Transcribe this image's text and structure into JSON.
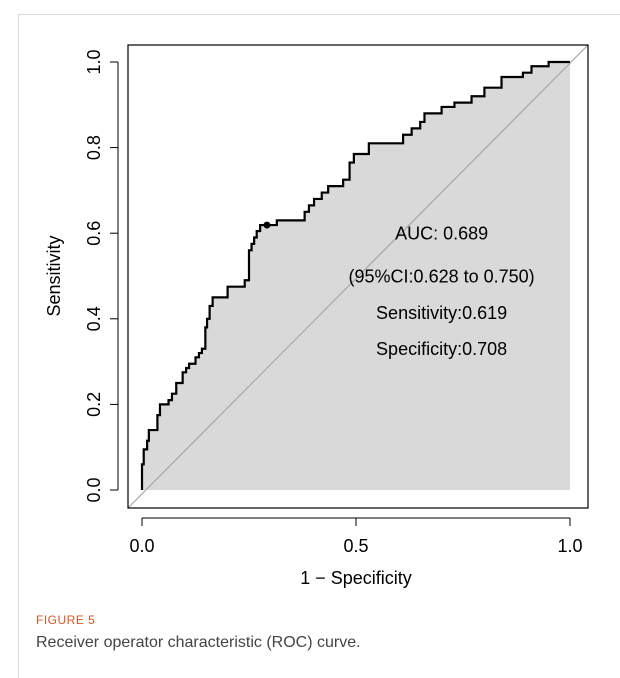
{
  "figure": {
    "label": "FIGURE 5",
    "caption": "Receiver operator characteristic (ROC) curve."
  },
  "chart_data": {
    "type": "line",
    "xlabel": "1 − Specificity",
    "ylabel": "Sensitivity",
    "xlim": [
      0,
      1
    ],
    "ylim": [
      0,
      1
    ],
    "x_ticks": [
      "0.0",
      "0.5",
      "1.0"
    ],
    "y_ticks": [
      "0.0",
      "0.2",
      "0.4",
      "0.6",
      "0.8",
      "1.0"
    ],
    "grid": false,
    "curve_color": "#000000",
    "fill_color": "#d9d9d9",
    "diagonal_color": "#a6a6a6",
    "series": [
      {
        "points": [
          [
            0,
            0
          ],
          [
            0,
            0.06
          ],
          [
            0.004,
            0.06
          ],
          [
            0.004,
            0.095
          ],
          [
            0.012,
            0.095
          ],
          [
            0.012,
            0.115
          ],
          [
            0.016,
            0.115
          ],
          [
            0.016,
            0.14
          ],
          [
            0.036,
            0.14
          ],
          [
            0.036,
            0.175
          ],
          [
            0.042,
            0.175
          ],
          [
            0.042,
            0.2
          ],
          [
            0.062,
            0.2
          ],
          [
            0.062,
            0.21
          ],
          [
            0.07,
            0.21
          ],
          [
            0.07,
            0.225
          ],
          [
            0.08,
            0.225
          ],
          [
            0.08,
            0.25
          ],
          [
            0.095,
            0.25
          ],
          [
            0.095,
            0.275
          ],
          [
            0.103,
            0.275
          ],
          [
            0.103,
            0.285
          ],
          [
            0.11,
            0.285
          ],
          [
            0.11,
            0.295
          ],
          [
            0.125,
            0.295
          ],
          [
            0.125,
            0.31
          ],
          [
            0.133,
            0.31
          ],
          [
            0.133,
            0.32
          ],
          [
            0.14,
            0.32
          ],
          [
            0.14,
            0.33
          ],
          [
            0.148,
            0.33
          ],
          [
            0.148,
            0.38
          ],
          [
            0.152,
            0.38
          ],
          [
            0.152,
            0.4
          ],
          [
            0.158,
            0.4
          ],
          [
            0.158,
            0.43
          ],
          [
            0.165,
            0.43
          ],
          [
            0.165,
            0.45
          ],
          [
            0.2,
            0.45
          ],
          [
            0.2,
            0.475
          ],
          [
            0.24,
            0.475
          ],
          [
            0.24,
            0.49
          ],
          [
            0.25,
            0.49
          ],
          [
            0.25,
            0.56
          ],
          [
            0.256,
            0.56
          ],
          [
            0.256,
            0.575
          ],
          [
            0.262,
            0.575
          ],
          [
            0.262,
            0.59
          ],
          [
            0.268,
            0.59
          ],
          [
            0.268,
            0.605
          ],
          [
            0.276,
            0.605
          ],
          [
            0.276,
            0.619
          ],
          [
            0.315,
            0.619
          ],
          [
            0.315,
            0.63
          ],
          [
            0.38,
            0.63
          ],
          [
            0.38,
            0.65
          ],
          [
            0.39,
            0.65
          ],
          [
            0.39,
            0.665
          ],
          [
            0.402,
            0.665
          ],
          [
            0.402,
            0.68
          ],
          [
            0.42,
            0.68
          ],
          [
            0.42,
            0.695
          ],
          [
            0.435,
            0.695
          ],
          [
            0.435,
            0.71
          ],
          [
            0.47,
            0.71
          ],
          [
            0.47,
            0.725
          ],
          [
            0.485,
            0.725
          ],
          [
            0.485,
            0.765
          ],
          [
            0.495,
            0.765
          ],
          [
            0.495,
            0.785
          ],
          [
            0.53,
            0.785
          ],
          [
            0.53,
            0.81
          ],
          [
            0.61,
            0.81
          ],
          [
            0.61,
            0.83
          ],
          [
            0.63,
            0.83
          ],
          [
            0.63,
            0.845
          ],
          [
            0.65,
            0.845
          ],
          [
            0.65,
            0.86
          ],
          [
            0.66,
            0.86
          ],
          [
            0.66,
            0.88
          ],
          [
            0.7,
            0.88
          ],
          [
            0.7,
            0.895
          ],
          [
            0.73,
            0.895
          ],
          [
            0.73,
            0.905
          ],
          [
            0.77,
            0.905
          ],
          [
            0.77,
            0.92
          ],
          [
            0.8,
            0.92
          ],
          [
            0.8,
            0.94
          ],
          [
            0.84,
            0.94
          ],
          [
            0.84,
            0.965
          ],
          [
            0.89,
            0.965
          ],
          [
            0.89,
            0.975
          ],
          [
            0.91,
            0.975
          ],
          [
            0.91,
            0.99
          ],
          [
            0.95,
            0.99
          ],
          [
            0.95,
            1.0
          ],
          [
            1.0,
            1.0
          ]
        ]
      }
    ],
    "cutoff_point": {
      "x": 0.292,
      "y": 0.619
    },
    "annotations": [
      {
        "text": "AUC: 0.689",
        "x": 0.7,
        "y": 0.585
      },
      {
        "text": "(95%CI:0.628 to 0.750)",
        "x": 0.7,
        "y": 0.485
      },
      {
        "text": "Sensitivity:0.619",
        "x": 0.7,
        "y": 0.4
      },
      {
        "text": "Specificity:0.708",
        "x": 0.7,
        "y": 0.315
      }
    ]
  }
}
